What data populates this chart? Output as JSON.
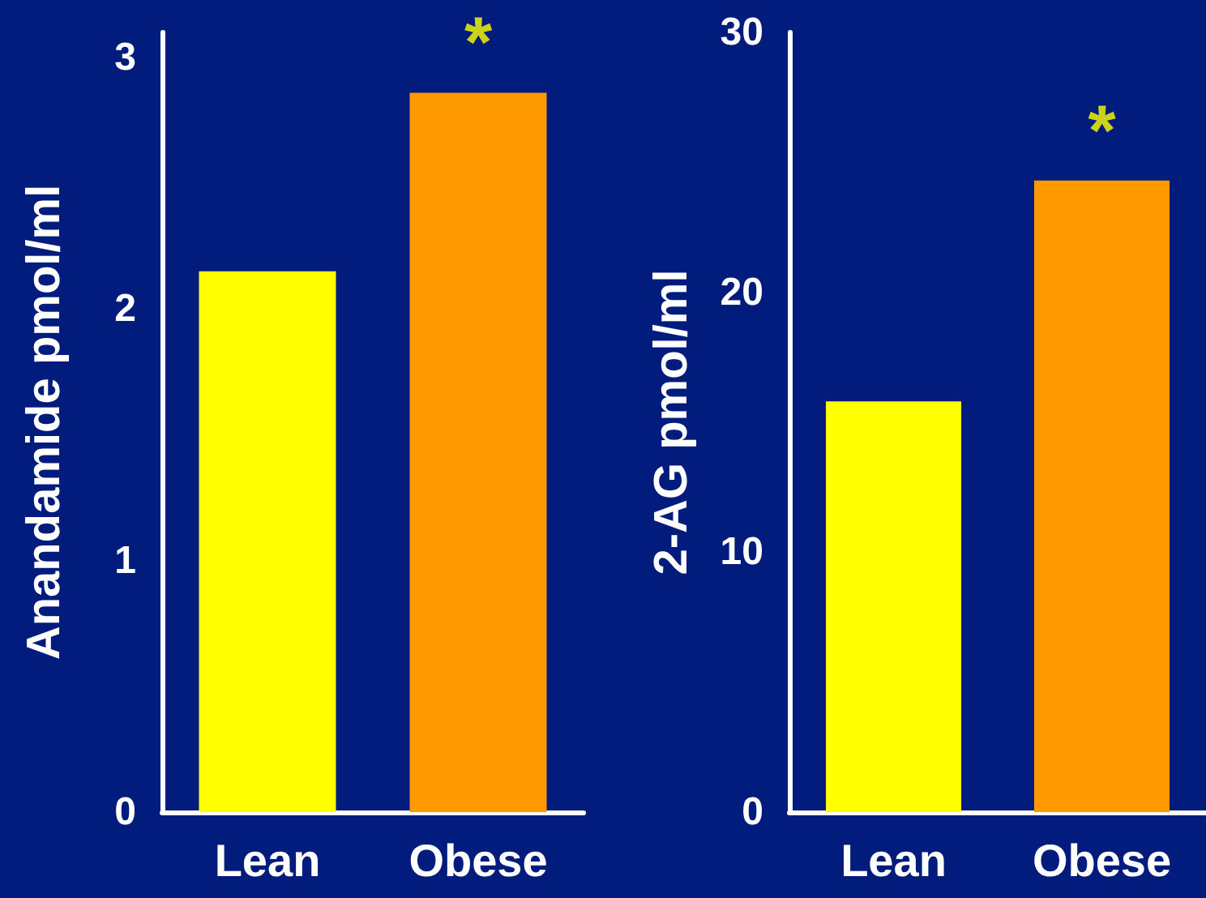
{
  "chart_data": [
    {
      "type": "bar",
      "ylabel": "Anandamide pmol/ml",
      "categories": [
        "Lean",
        "Obese"
      ],
      "values": [
        2.15,
        2.86
      ],
      "colors": [
        "#ffff00",
        "#ff9900"
      ],
      "ylim": [
        0,
        3.1
      ],
      "yticks": [
        0,
        1,
        2,
        3
      ],
      "grid": false,
      "annotations": [
        {
          "text": "*",
          "x": "Obese",
          "y": 2.86
        }
      ]
    },
    {
      "type": "bar",
      "ylabel": "2-AG pmol/ml",
      "categories": [
        "Lean",
        "Obese"
      ],
      "values": [
        15.8,
        24.3
      ],
      "colors": [
        "#ffff00",
        "#ff9900"
      ],
      "ylim": [
        0,
        30
      ],
      "yticks": [
        0,
        10,
        20,
        30
      ],
      "grid": false,
      "annotations": [
        {
          "text": "*",
          "x": "Obese",
          "y": 24.3
        }
      ]
    }
  ]
}
